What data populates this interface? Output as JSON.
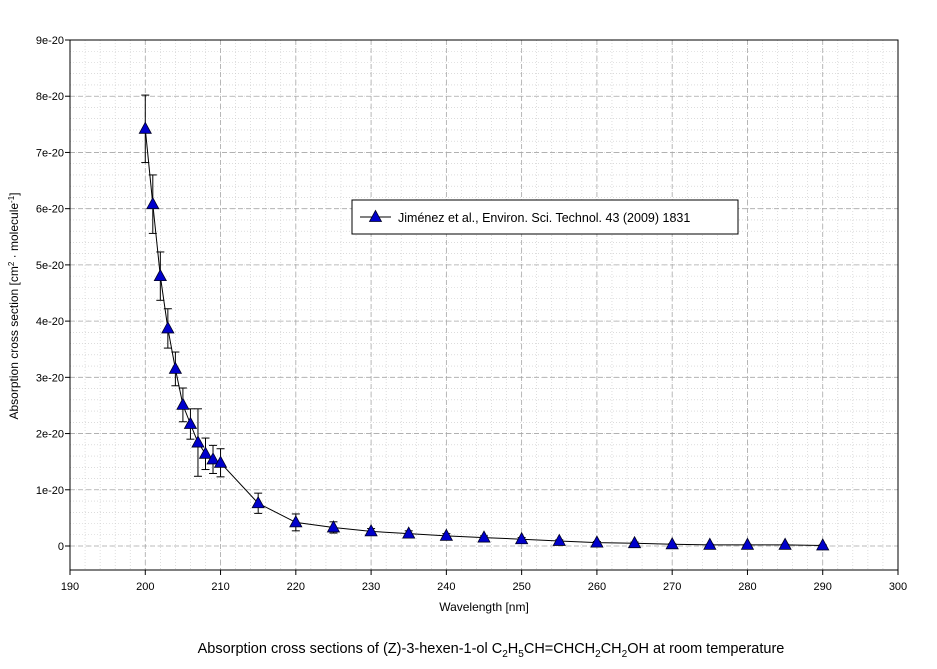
{
  "chart_data": {
    "type": "scatter",
    "x_axis": {
      "label": "Wavelength [nm]",
      "min": 190,
      "max": 300,
      "ticks": [
        "190",
        "200",
        "210",
        "220",
        "230",
        "240",
        "250",
        "260",
        "270",
        "280",
        "290",
        "300"
      ]
    },
    "y_axis": {
      "label_main": "Absorption cross section [cm",
      "label_sup1": "2",
      "label_mid": " · molecule",
      "label_sup2": "-1",
      "label_end": "]",
      "min": 0,
      "max": 9e-20,
      "ticks": [
        "0",
        "1e-20",
        "2e-20",
        "3e-20",
        "4e-20",
        "5e-20",
        "6e-20",
        "7e-20",
        "8e-20",
        "9e-20"
      ]
    },
    "grid": true,
    "legend_placement": "center-right",
    "series": [
      {
        "name": "Jiménez et al., Environ. Sci. Technol. 43 (2009) 1831",
        "color": "#0000cc",
        "marker": "triangle",
        "line": true,
        "points": [
          {
            "x": 200,
            "y": 7.42e-20,
            "err": 6e-21
          },
          {
            "x": 201,
            "y": 6.08e-20,
            "err": 5.2e-21
          },
          {
            "x": 202,
            "y": 4.8e-20,
            "err": 4.3e-21
          },
          {
            "x": 203,
            "y": 3.87e-20,
            "err": 3.5e-21
          },
          {
            "x": 204,
            "y": 3.15e-20,
            "err": 3e-21
          },
          {
            "x": 205,
            "y": 2.51e-20,
            "err": 3e-21
          },
          {
            "x": 206,
            "y": 2.17e-20,
            "err": 2.7e-21
          },
          {
            "x": 207,
            "y": 1.84e-20,
            "err": 6e-21
          },
          {
            "x": 208,
            "y": 1.64e-20,
            "err": 2.8e-21
          },
          {
            "x": 209,
            "y": 1.54e-20,
            "err": 2.5e-21
          },
          {
            "x": 210,
            "y": 1.48e-20,
            "err": 2.5e-21
          },
          {
            "x": 215,
            "y": 7.6e-21,
            "err": 1.8e-21
          },
          {
            "x": 220,
            "y": 4.2e-21,
            "err": 1.5e-21
          },
          {
            "x": 225,
            "y": 3.3e-21,
            "err": 1e-21
          },
          {
            "x": 230,
            "y": 2.6e-21,
            "err": 5e-22
          },
          {
            "x": 235,
            "y": 2.2e-21,
            "err": 5e-22
          },
          {
            "x": 240,
            "y": 1.8e-21,
            "err": 4e-22
          },
          {
            "x": 245,
            "y": 1.5e-21,
            "err": 3e-22
          },
          {
            "x": 250,
            "y": 1.2e-21,
            "err": 3e-22
          },
          {
            "x": 255,
            "y": 9e-22,
            "err": 2e-22
          },
          {
            "x": 260,
            "y": 6e-22,
            "err": 2e-22
          },
          {
            "x": 265,
            "y": 5e-22,
            "err": 2e-22
          },
          {
            "x": 270,
            "y": 3e-22,
            "err": 1e-22
          },
          {
            "x": 275,
            "y": 2e-22,
            "err": 1e-22
          },
          {
            "x": 280,
            "y": 2e-22,
            "err": 1e-22
          },
          {
            "x": 285,
            "y": 2e-22,
            "err": 1e-22
          },
          {
            "x": 290,
            "y": 1e-22,
            "err": 1e-22
          }
        ]
      }
    ]
  },
  "caption": {
    "p1": "Absorption cross sections of (Z)-3-hexen-1-ol C",
    "s1": "2",
    "p2": "H",
    "s2": "5",
    "p3": "CH=CHCH",
    "s3": "2",
    "p4": "CH",
    "s4": "2",
    "p5": "OH at room temperature"
  }
}
